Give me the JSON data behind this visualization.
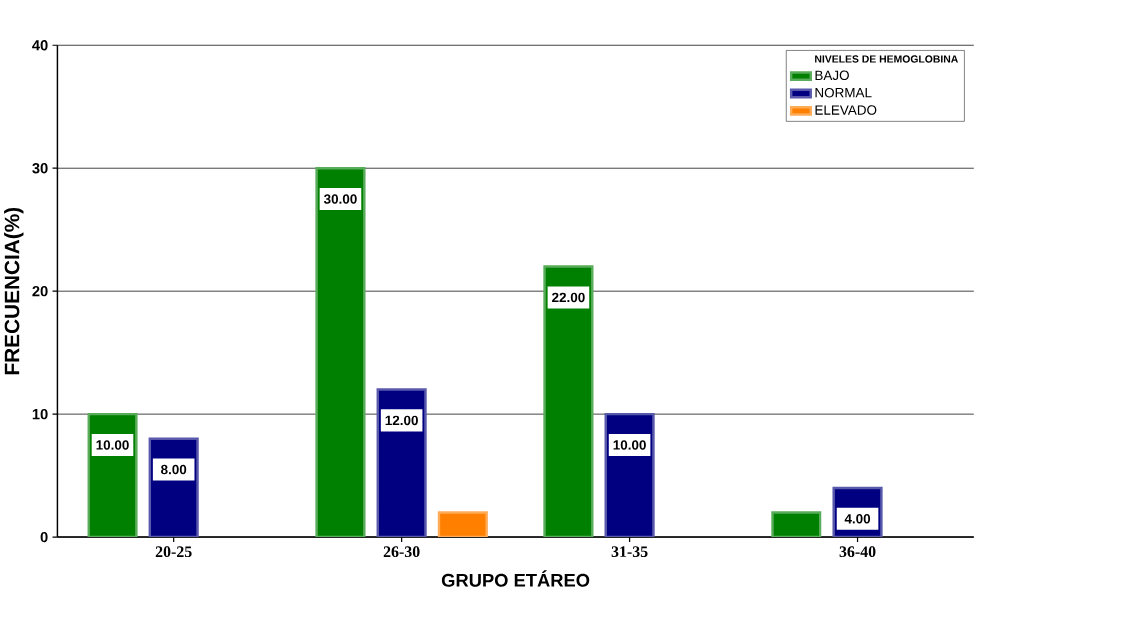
{
  "chart_data": {
    "type": "bar",
    "xlabel": "GRUPO ETÁREO",
    "ylabel": "FRECUENCIA(%)",
    "legend_title": "NIVELES DE HEMOGLOBINA",
    "categories": [
      "20-25",
      "26-30",
      "31-35",
      "36-40"
    ],
    "series": [
      {
        "name": "BAJO",
        "color": "#008000",
        "values": [
          10,
          30,
          22,
          2
        ],
        "value_labels": [
          "10.00",
          "30.00",
          "22.00",
          null
        ]
      },
      {
        "name": "NORMAL",
        "color": "#000080",
        "values": [
          8,
          12,
          10,
          4
        ],
        "value_labels": [
          "8.00",
          "12.00",
          "10.00",
          "4.00"
        ]
      },
      {
        "name": "ELEVADO",
        "color": "#ff8000",
        "values": [
          null,
          2,
          null,
          null
        ],
        "value_labels": [
          null,
          null,
          null,
          null
        ]
      }
    ],
    "ylim": [
      0,
      40
    ],
    "yticks": [
      0,
      10,
      20,
      30,
      40
    ],
    "grid": "y",
    "legend": "top right"
  }
}
